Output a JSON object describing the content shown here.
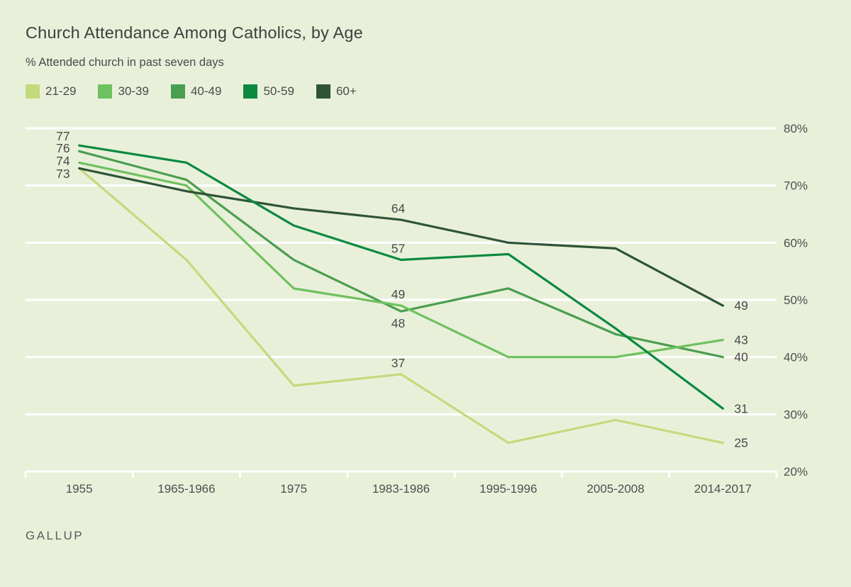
{
  "footer": {
    "brand": "GALLUP"
  },
  "colors": {
    "background": "#e9f0da",
    "gridline": "#ffffff",
    "axis_text": "#4e4e4e",
    "title_text": "#3d403c",
    "label_text": "#4a4a4a"
  },
  "chart_data": {
    "type": "line",
    "title": "Church Attendance Among Catholics, by Age",
    "subtitle": "% Attended church in past seven days",
    "categories": [
      "1955",
      "1965-1966",
      "1975",
      "1983-1986",
      "1995-1996",
      "2005-2008",
      "2014-2017"
    ],
    "series": [
      {
        "name": "21-29",
        "color": "#c3da7c",
        "values": [
          73,
          57,
          35,
          37,
          25,
          29,
          25
        ]
      },
      {
        "name": "30-39",
        "color": "#6ec15e",
        "values": [
          74,
          70,
          52,
          49,
          40,
          40,
          43
        ]
      },
      {
        "name": "40-49",
        "color": "#4a9e50",
        "values": [
          76,
          71,
          57,
          48,
          52,
          44,
          40
        ]
      },
      {
        "name": "50-59",
        "color": "#0b8a3f",
        "values": [
          77,
          74,
          63,
          57,
          58,
          45,
          31
        ]
      },
      {
        "name": "60+",
        "color": "#2e5437",
        "values": [
          73,
          69,
          66,
          64,
          60,
          59,
          49
        ]
      }
    ],
    "draw_order": [
      "21-29",
      "40-49",
      "30-39",
      "60+",
      "50-59"
    ],
    "ylim": [
      20,
      80
    ],
    "ytick_values": [
      80,
      70,
      60,
      50,
      40,
      30,
      20
    ],
    "ytick_labels": [
      "80%",
      "70%",
      "60%",
      "50%",
      "40%",
      "30%",
      "20%"
    ],
    "grid": "horizontal-white",
    "legend_position": "top-left",
    "point_labels": [
      {
        "text": "77",
        "series": "50-59",
        "x_index": 0,
        "value": 77,
        "placement": "start"
      },
      {
        "text": "76",
        "series": "40-49",
        "x_index": 0,
        "value": 76,
        "placement": "start"
      },
      {
        "text": "74",
        "series": "30-39",
        "x_index": 0,
        "value": 74,
        "placement": "start"
      },
      {
        "text": "73",
        "series": "60+",
        "x_index": 0,
        "value": 73,
        "placement": "start"
      },
      {
        "text": "64",
        "series": "60+",
        "x_index": 3,
        "value": 64,
        "placement": "above"
      },
      {
        "text": "57",
        "series": "50-59",
        "x_index": 3,
        "value": 57,
        "placement": "above"
      },
      {
        "text": "49",
        "series": "30-39",
        "x_index": 3,
        "value": 49,
        "placement": "above"
      },
      {
        "text": "48",
        "series": "40-49",
        "x_index": 3,
        "value": 48,
        "placement": "below"
      },
      {
        "text": "37",
        "series": "21-29",
        "x_index": 3,
        "value": 37,
        "placement": "above"
      },
      {
        "text": "49",
        "series": "60+",
        "x_index": 6,
        "value": 49,
        "placement": "end"
      },
      {
        "text": "43",
        "series": "30-39",
        "x_index": 6,
        "value": 43,
        "placement": "end"
      },
      {
        "text": "40",
        "series": "40-49",
        "x_index": 6,
        "value": 40,
        "placement": "end"
      },
      {
        "text": "31",
        "series": "50-59",
        "x_index": 6,
        "value": 31,
        "placement": "end"
      },
      {
        "text": "25",
        "series": "21-29",
        "x_index": 6,
        "value": 25,
        "placement": "end"
      }
    ]
  }
}
